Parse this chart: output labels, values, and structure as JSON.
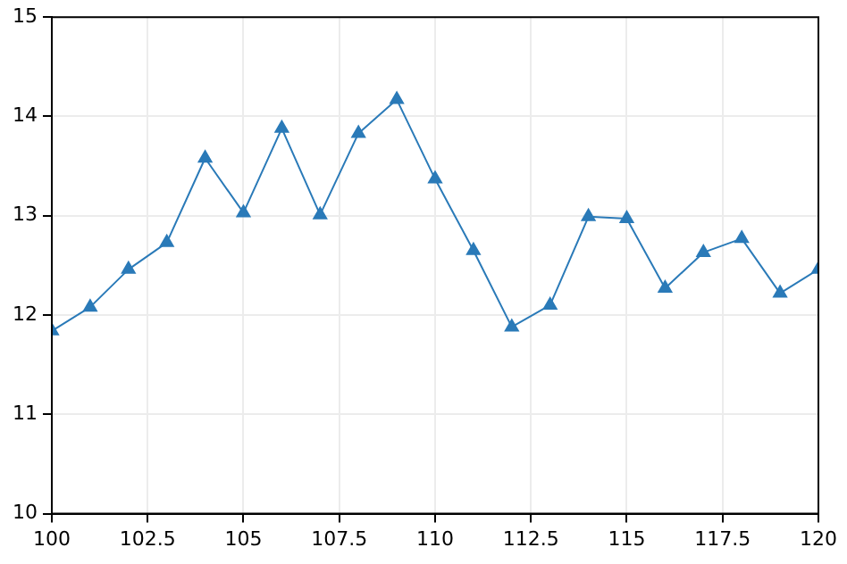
{
  "chart_data": {
    "type": "line",
    "x": [
      100,
      101,
      102,
      103,
      104,
      105,
      106,
      107,
      108,
      109,
      110,
      111,
      112,
      113,
      114,
      115,
      116,
      117,
      118,
      119,
      120
    ],
    "series": [
      {
        "color": "#2a7ab8",
        "values": [
          11.84,
          12.08,
          12.46,
          12.73,
          13.58,
          13.03,
          13.88,
          13.01,
          13.83,
          14.17,
          13.37,
          12.65,
          11.88,
          12.1,
          12.99,
          12.97,
          12.27,
          12.63,
          12.77,
          12.22,
          12.46
        ]
      }
    ],
    "xlim": [
      100,
      120
    ],
    "xticks": [
      100,
      102.5,
      105,
      107.5,
      110,
      112.5,
      115,
      117.5,
      120
    ],
    "ylim": [
      10,
      15
    ],
    "yticks": [
      10,
      11,
      12,
      13,
      14,
      15
    ],
    "grid": true,
    "marker": "triangle",
    "line_style": "solid",
    "legend": false
  }
}
